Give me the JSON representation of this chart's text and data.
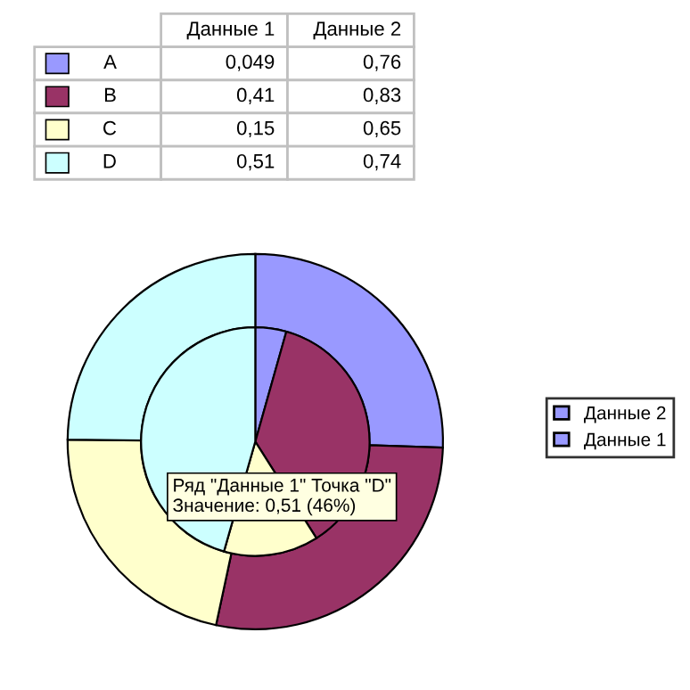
{
  "chart_data": {
    "type": "donut",
    "categories": [
      "A",
      "B",
      "C",
      "D"
    ],
    "colors": [
      "#9999ff",
      "#993366",
      "#ffffcc",
      "#ccffff"
    ],
    "series": [
      {
        "name": "Данные 1",
        "color": "#9999ff",
        "values": [
          0.049,
          0.41,
          0.15,
          0.51
        ],
        "value_labels": [
          "0,049",
          "0,41",
          "0,15",
          "0,51"
        ]
      },
      {
        "name": "Данные 2",
        "color": "#9999ff",
        "values": [
          0.76,
          0.83,
          0.65,
          0.74
        ],
        "value_labels": [
          "0,76",
          "0,83",
          "0,65",
          "0,74"
        ]
      }
    ],
    "annotations": [
      "Ряд \"Данные 1\" Точка \"D\"\nЗначение: 0,51 (46%)"
    ],
    "legend": "right"
  }
}
